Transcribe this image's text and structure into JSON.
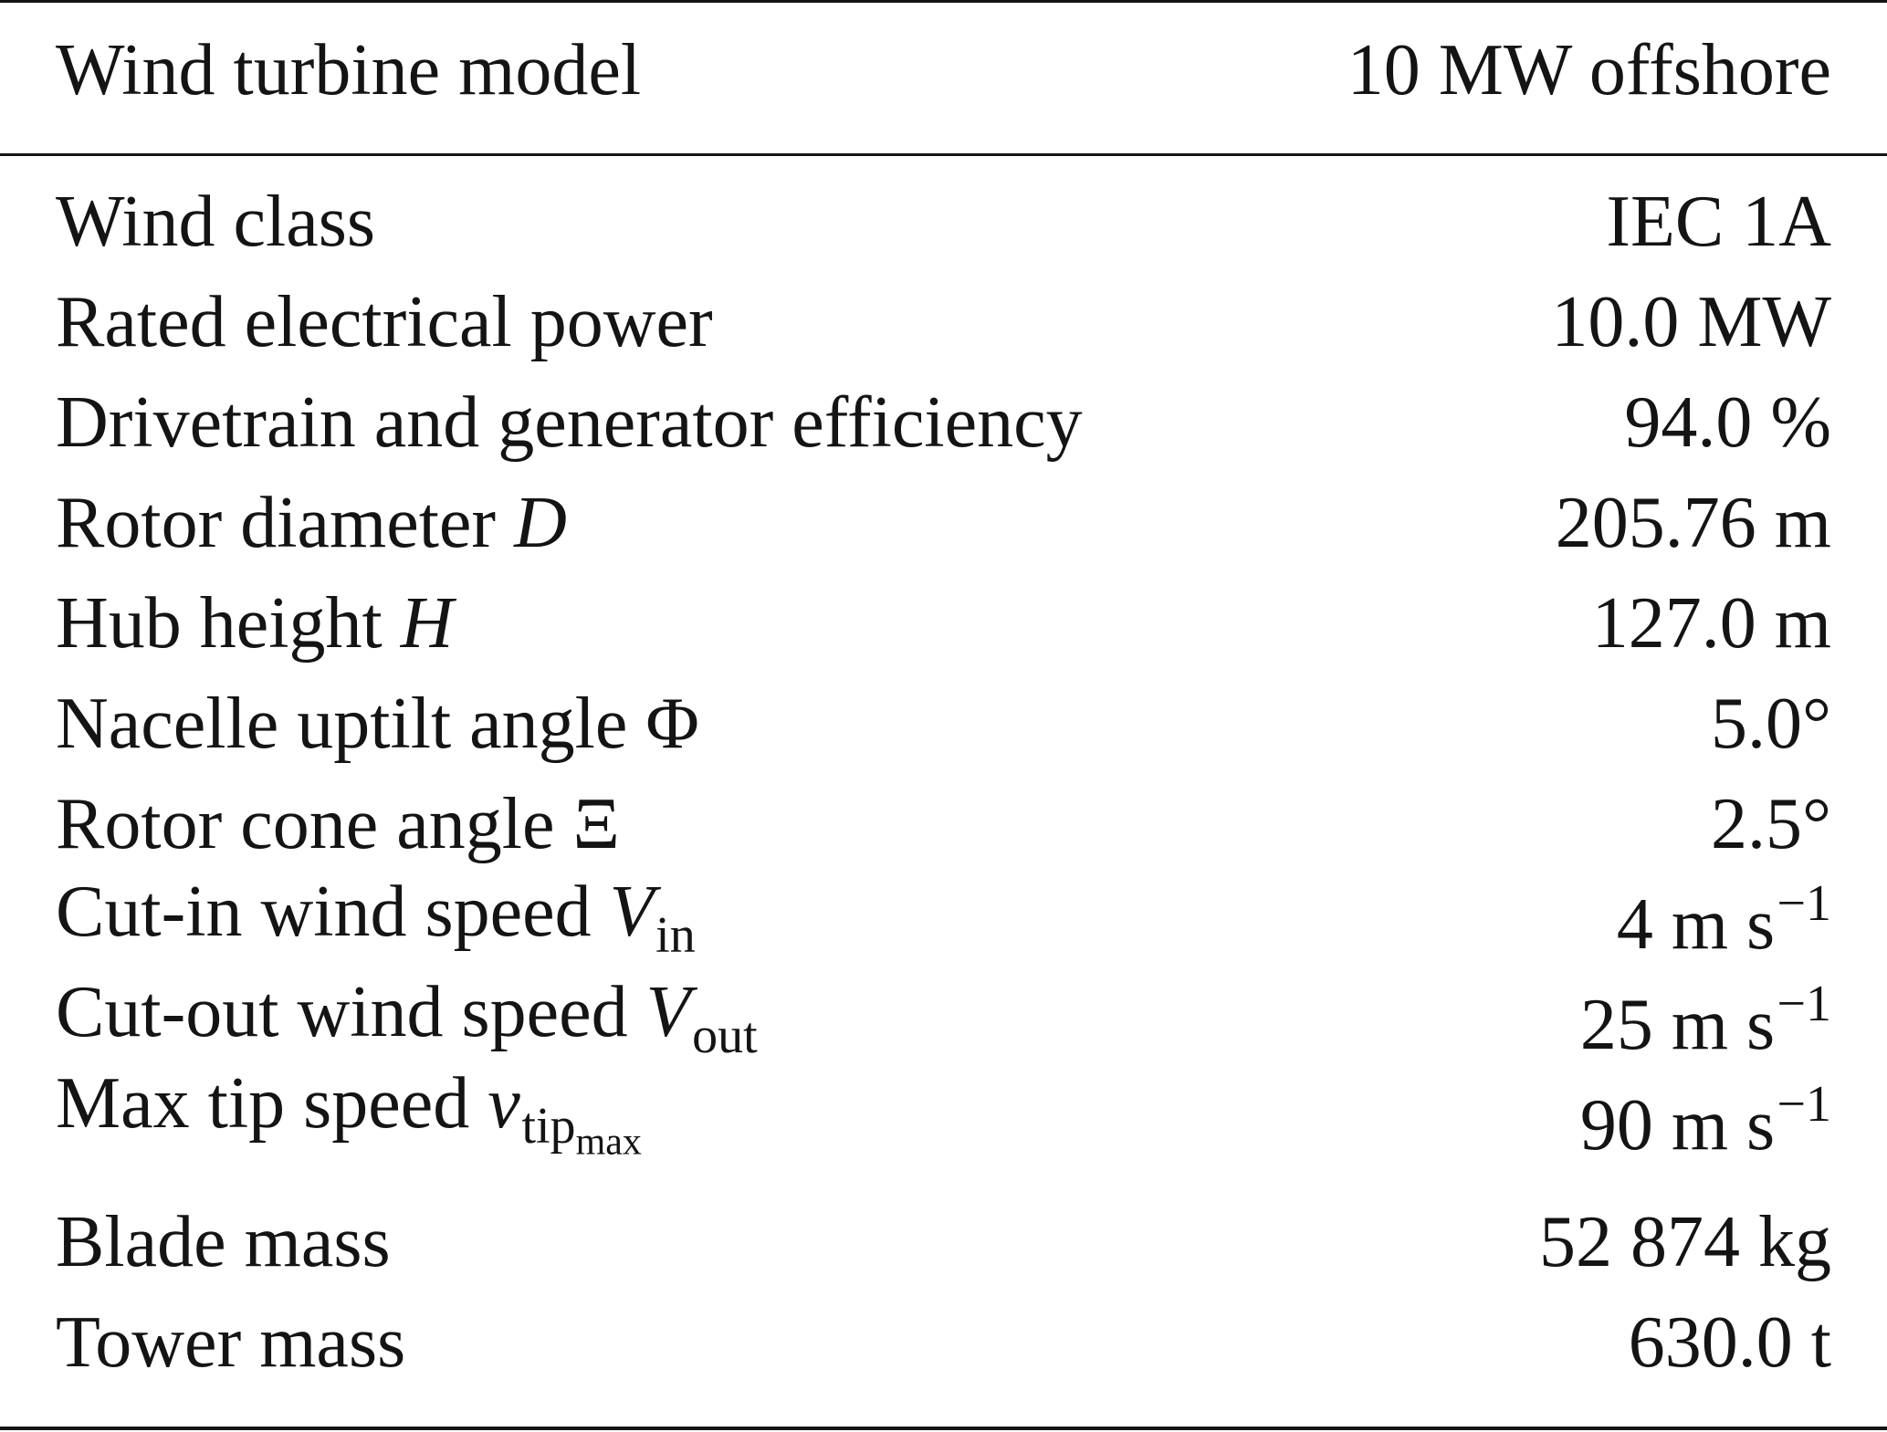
{
  "header": {
    "label": "Wind turbine model",
    "value": "10 MW offshore"
  },
  "rows": [
    {
      "label": "Wind class",
      "value": "IEC 1A"
    },
    {
      "label": "Rated electrical power",
      "value": "10.0 MW"
    },
    {
      "label": "Drivetrain and generator efficiency",
      "value": "94.0 %"
    },
    {
      "label": "Rotor diameter",
      "symbol": "D",
      "value": "205.76 m"
    },
    {
      "label": "Hub height",
      "symbol": "H",
      "value": "127.0 m"
    },
    {
      "label": "Nacelle uptilt angle",
      "symbol": "Φ",
      "value": "5.0°"
    },
    {
      "label": "Rotor cone angle",
      "symbol": "Ξ",
      "value": "2.5°"
    },
    {
      "label": "Cut-in wind speed",
      "symbol": "V",
      "subscript": "in",
      "value": "4 m s",
      "exponent": "−1"
    },
    {
      "label": "Cut-out wind speed",
      "symbol": "V",
      "subscript": "out",
      "value": "25 m s",
      "exponent": "−1"
    },
    {
      "label": "Max tip speed",
      "symbol": "v",
      "subscript": "tip",
      "subsubscript": "max",
      "value": "90 m s",
      "exponent": "−1"
    },
    {
      "label": "Blade mass",
      "value": "52 874 kg"
    },
    {
      "label": "Tower mass",
      "value": "630.0 t"
    }
  ]
}
